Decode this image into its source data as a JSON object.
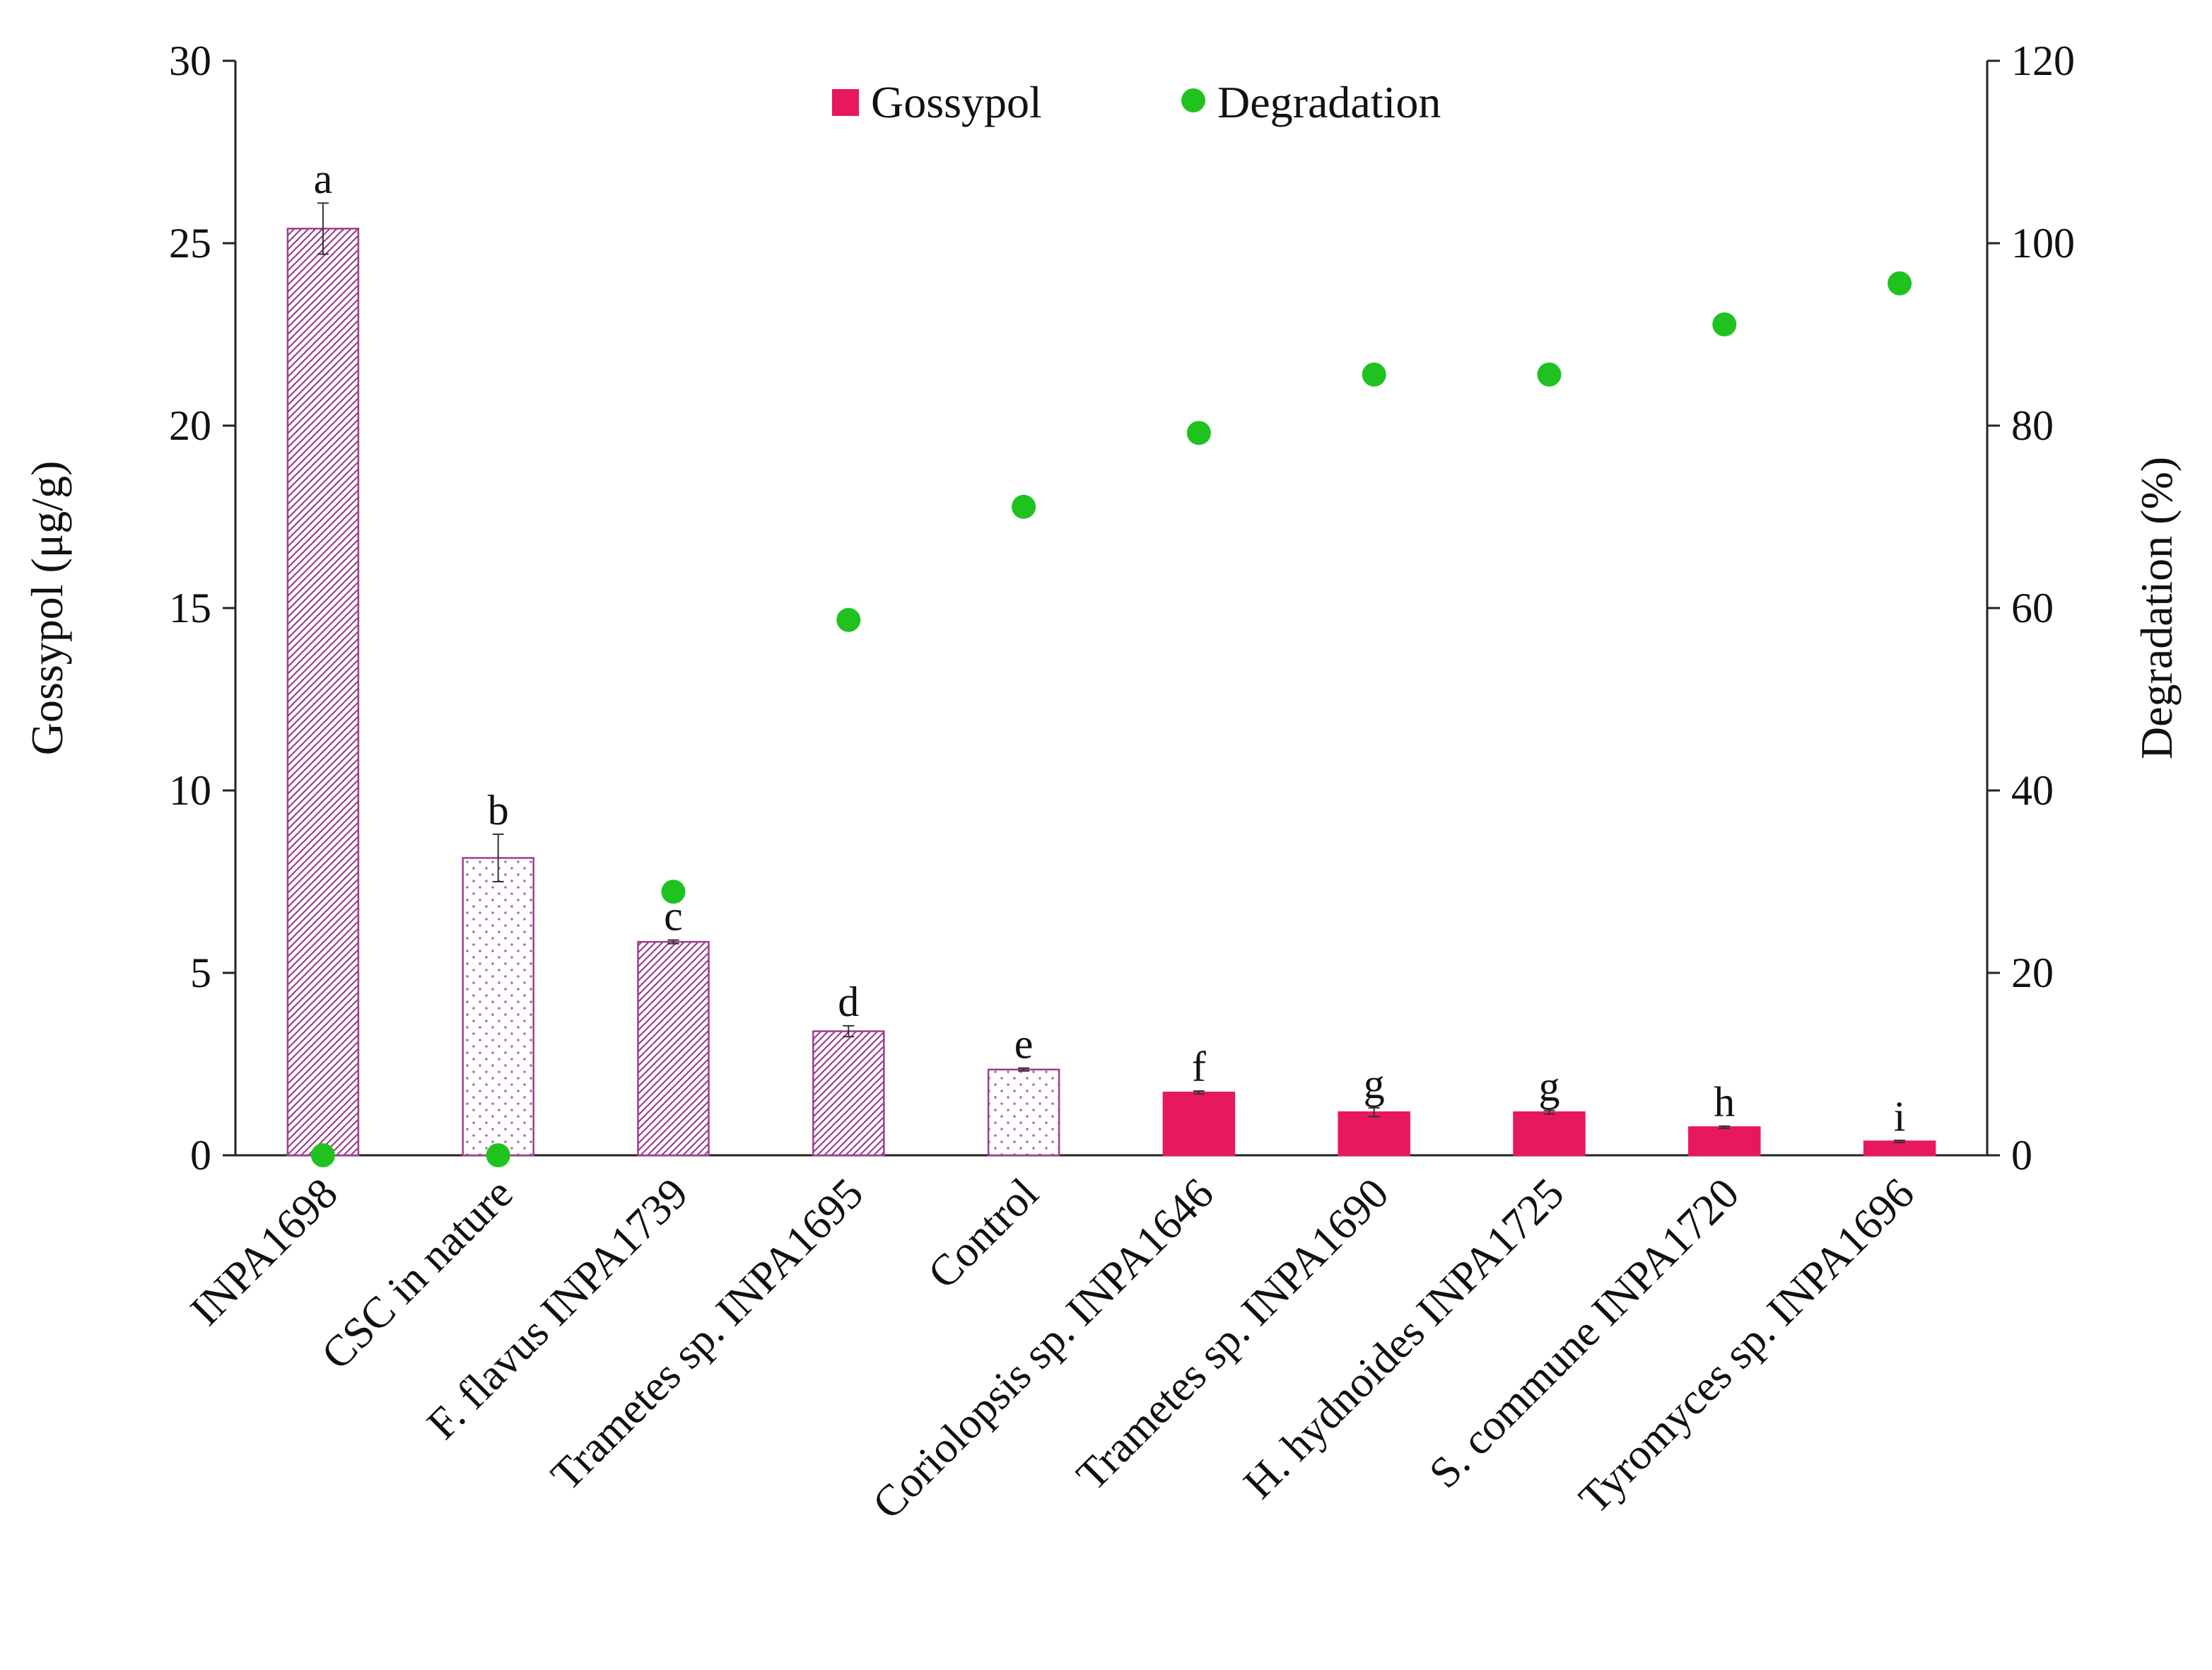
{
  "chart_data": {
    "type": "bar",
    "categories": [
      "INPA1698",
      "CSC in nature",
      "F. flavus INPA1739",
      "Trametes sp. INPA1695",
      "Control",
      "Coriolopsis sp. INPA1646",
      "Trametes sp. INPA1690",
      "H. hydnoides INPA1725",
      "S. commune INPA1720",
      "Tyromyces sp. INPA1696"
    ],
    "series": [
      {
        "name": "Gossypol",
        "axis": "left",
        "kind": "bar",
        "values": [
          25.4,
          8.15,
          5.85,
          3.4,
          2.35,
          1.72,
          1.18,
          1.18,
          0.77,
          0.38
        ],
        "errors": [
          0.7,
          0.65,
          0.05,
          0.15,
          0.04,
          0.04,
          0.12,
          0.05,
          0.03,
          0.03
        ],
        "significance": [
          "a",
          "b",
          "c",
          "d",
          "e",
          "f",
          "g",
          "g",
          "h",
          "i"
        ],
        "fill_styles": [
          "hatch",
          "dots",
          "hatch",
          "hatch",
          "dots",
          "solid",
          "solid",
          "solid",
          "solid",
          "solid"
        ]
      },
      {
        "name": "Degradation",
        "axis": "right",
        "kind": "scatter",
        "values": [
          0,
          0,
          28.9,
          58.7,
          71.1,
          79.2,
          85.6,
          85.6,
          91.1,
          95.6
        ]
      }
    ],
    "ylabel": "Gossypol (μg/g)",
    "y2label": "Degradation (%)",
    "ylim": [
      0,
      30
    ],
    "y2lim": [
      0,
      120
    ],
    "yticks": [
      "0",
      "5",
      "10",
      "15",
      "20",
      "25",
      "30"
    ],
    "y2ticks": [
      "0",
      "20",
      "40",
      "60",
      "80",
      "100",
      "120"
    ],
    "legend": {
      "position": "top-center",
      "entries": [
        "Gossypol",
        "Degradation"
      ]
    },
    "grid": false,
    "colors": {
      "bar_solid": "#e8185f",
      "bar_pattern_stroke": "#9c3f8e",
      "dots_pattern": "#b06aa8",
      "degradation_marker": "#1fc21f",
      "axis": "#222222"
    }
  }
}
